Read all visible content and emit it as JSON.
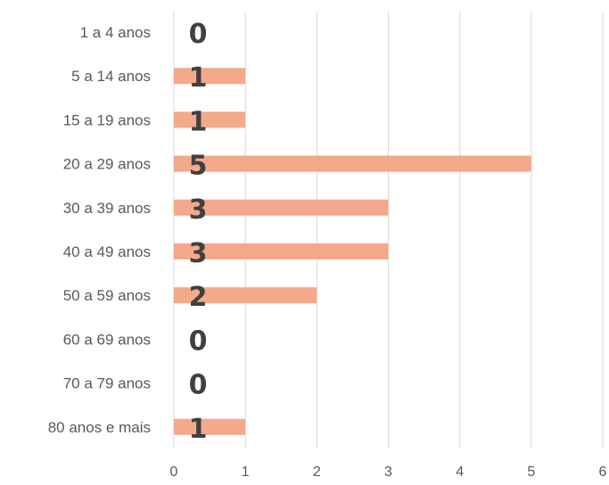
{
  "chart_data": {
    "type": "bar",
    "orientation": "horizontal",
    "categories": [
      "1 a 4 anos",
      "5 a 14 anos",
      "15 a 19 anos",
      "20 a 29 anos",
      "30 a 39 anos",
      "40 a 49 anos",
      "50 a 59 anos",
      "60 a 69 anos",
      "70 a 79 anos",
      "80 anos e mais"
    ],
    "values": [
      0,
      1,
      1,
      5,
      3,
      3,
      2,
      0,
      0,
      1
    ],
    "xlim": [
      0,
      6
    ],
    "xticks": [
      "0",
      "1",
      "2",
      "3",
      "4",
      "5",
      "6"
    ],
    "grid": "vertical",
    "legend": "none",
    "colors": {
      "bar": "#f4a98a",
      "grid": "#d9d9d9",
      "data_label": "#404040",
      "axis_text": "#595959"
    }
  }
}
